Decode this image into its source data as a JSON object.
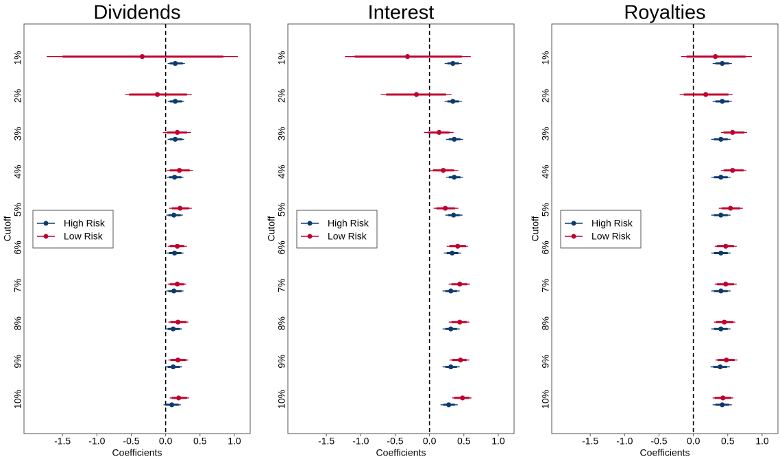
{
  "chart_data": [
    {
      "type": "coefplot",
      "title": "Dividends",
      "xlabel": "Coefficients",
      "ylabel": "Cutoff",
      "categories": [
        "1%",
        "2%",
        "3%",
        "4%",
        "5%",
        "6%",
        "7%",
        "8%",
        "9%",
        "10%"
      ],
      "xlim": [
        -2.06,
        1.23
      ],
      "xticks": [
        -1.5,
        {
          "value": -1,
          "label": "-1.0"
        },
        -0.5,
        {
          "value": 0,
          "label": "0.0"
        },
        0.5,
        {
          "value": 1,
          "label": "1.0"
        }
      ],
      "refline": 0,
      "legend": "left",
      "series": [
        {
          "name": "High Risk",
          "color": "#0d3a6e",
          "values": [
            0.14,
            0.14,
            0.14,
            0.13,
            0.12,
            0.13,
            0.12,
            0.11,
            0.11,
            0.09
          ],
          "lower": [
            0.03,
            0.03,
            0.03,
            0.02,
            0.01,
            0.02,
            0.01,
            0.0,
            0.0,
            -0.03
          ],
          "upper": [
            0.28,
            0.27,
            0.27,
            0.26,
            0.25,
            0.26,
            0.26,
            0.24,
            0.24,
            0.22
          ],
          "inner_lower": [
            0.06,
            0.06,
            0.06,
            0.05,
            0.04,
            0.05,
            0.04,
            0.03,
            0.03,
            0.0
          ],
          "inner_upper": [
            0.25,
            0.24,
            0.24,
            0.23,
            0.22,
            0.23,
            0.23,
            0.21,
            0.21,
            0.19
          ]
        },
        {
          "name": "Low Risk",
          "color": "#c0002f",
          "values": [
            -0.34,
            -0.12,
            0.17,
            0.2,
            0.21,
            0.17,
            0.17,
            0.18,
            0.18,
            0.19
          ],
          "lower": [
            -1.73,
            -0.59,
            -0.04,
            0.02,
            0.05,
            0.03,
            0.03,
            0.04,
            0.04,
            0.06
          ],
          "upper": [
            1.05,
            0.38,
            0.37,
            0.4,
            0.38,
            0.31,
            0.3,
            0.33,
            0.33,
            0.34
          ],
          "inner_lower": [
            -1.5,
            -0.53,
            0.02,
            0.06,
            0.09,
            0.06,
            0.06,
            0.07,
            0.07,
            0.09
          ],
          "inner_upper": [
            0.84,
            0.31,
            0.31,
            0.35,
            0.34,
            0.27,
            0.27,
            0.3,
            0.3,
            0.31
          ]
        }
      ]
    },
    {
      "type": "coefplot",
      "title": "Interest",
      "xlabel": "Coefficients",
      "ylabel": "Cutoff",
      "categories": [
        "1%",
        "2%",
        "3%",
        "4%",
        "5%",
        "6%",
        "7%",
        "8%",
        "9%",
        "10%"
      ],
      "xlim": [
        -2.06,
        1.23
      ],
      "xticks": [
        -1.5,
        {
          "value": -1,
          "label": "-1.0"
        },
        -0.5,
        {
          "value": 0,
          "label": "0.0"
        },
        0.5,
        {
          "value": 1,
          "label": "1.0"
        }
      ],
      "refline": 0,
      "legend": "left",
      "series": [
        {
          "name": "High Risk",
          "color": "#0d3a6e",
          "values": [
            0.34,
            0.34,
            0.36,
            0.36,
            0.35,
            0.33,
            0.31,
            0.31,
            0.31,
            0.28
          ],
          "lower": [
            0.22,
            0.22,
            0.24,
            0.24,
            0.23,
            0.21,
            0.19,
            0.19,
            0.19,
            0.16
          ],
          "upper": [
            0.47,
            0.47,
            0.49,
            0.49,
            0.48,
            0.46,
            0.44,
            0.44,
            0.44,
            0.41
          ],
          "inner_lower": [
            0.26,
            0.26,
            0.28,
            0.28,
            0.27,
            0.25,
            0.23,
            0.23,
            0.23,
            0.2
          ],
          "inner_upper": [
            0.43,
            0.43,
            0.45,
            0.45,
            0.44,
            0.42,
            0.4,
            0.4,
            0.4,
            0.37
          ]
        },
        {
          "name": "Low Risk",
          "color": "#c0002f",
          "values": [
            -0.32,
            -0.19,
            0.14,
            0.2,
            0.23,
            0.41,
            0.44,
            0.44,
            0.45,
            0.48
          ],
          "lower": [
            -1.23,
            -0.71,
            -0.08,
            0.0,
            0.06,
            0.25,
            0.28,
            0.28,
            0.29,
            0.33
          ],
          "upper": [
            0.6,
            0.32,
            0.35,
            0.42,
            0.42,
            0.56,
            0.59,
            0.58,
            0.58,
            0.61
          ],
          "inner_lower": [
            -1.09,
            -0.63,
            -0.02,
            0.05,
            0.1,
            0.29,
            0.32,
            0.32,
            0.33,
            0.36
          ],
          "inner_upper": [
            0.47,
            0.24,
            0.29,
            0.36,
            0.37,
            0.53,
            0.55,
            0.54,
            0.54,
            0.58
          ]
        }
      ]
    },
    {
      "type": "coefplot",
      "title": "Royalties",
      "xlabel": "Coefficients",
      "ylabel": "Cutoff",
      "categories": [
        "1%",
        "2%",
        "3%",
        "4%",
        "5%",
        "6%",
        "7%",
        "8%",
        "9%",
        "10%"
      ],
      "xlim": [
        -2.06,
        1.23
      ],
      "xticks": [
        -1.5,
        {
          "value": -1,
          "label": "-1.0"
        },
        -0.5,
        {
          "value": 0,
          "label": "0.0"
        },
        0.5,
        {
          "value": 1,
          "label": "1.0"
        }
      ],
      "refline": 0,
      "legend": "left",
      "series": [
        {
          "name": "High Risk",
          "color": "#0d3a6e",
          "values": [
            0.42,
            0.42,
            0.4,
            0.4,
            0.4,
            0.4,
            0.4,
            0.4,
            0.39,
            0.42
          ],
          "lower": [
            0.28,
            0.28,
            0.26,
            0.26,
            0.26,
            0.26,
            0.26,
            0.26,
            0.25,
            0.28
          ],
          "upper": [
            0.56,
            0.56,
            0.54,
            0.54,
            0.54,
            0.54,
            0.54,
            0.54,
            0.53,
            0.56
          ],
          "inner_lower": [
            0.32,
            0.32,
            0.3,
            0.3,
            0.3,
            0.3,
            0.3,
            0.3,
            0.29,
            0.32
          ],
          "inner_upper": [
            0.52,
            0.52,
            0.5,
            0.5,
            0.5,
            0.5,
            0.5,
            0.5,
            0.49,
            0.52
          ]
        },
        {
          "name": "Low Risk",
          "color": "#c0002f",
          "values": [
            0.32,
            0.18,
            0.57,
            0.57,
            0.54,
            0.47,
            0.47,
            0.45,
            0.48,
            0.43
          ],
          "lower": [
            -0.18,
            -0.2,
            0.4,
            0.4,
            0.37,
            0.31,
            0.31,
            0.3,
            0.32,
            0.28
          ],
          "upper": [
            0.85,
            0.57,
            0.78,
            0.77,
            0.72,
            0.63,
            0.63,
            0.61,
            0.64,
            0.58
          ],
          "inner_lower": [
            -0.1,
            -0.14,
            0.44,
            0.44,
            0.41,
            0.34,
            0.34,
            0.33,
            0.35,
            0.31
          ],
          "inner_upper": [
            0.76,
            0.51,
            0.74,
            0.73,
            0.68,
            0.59,
            0.59,
            0.58,
            0.6,
            0.55
          ]
        }
      ]
    }
  ]
}
